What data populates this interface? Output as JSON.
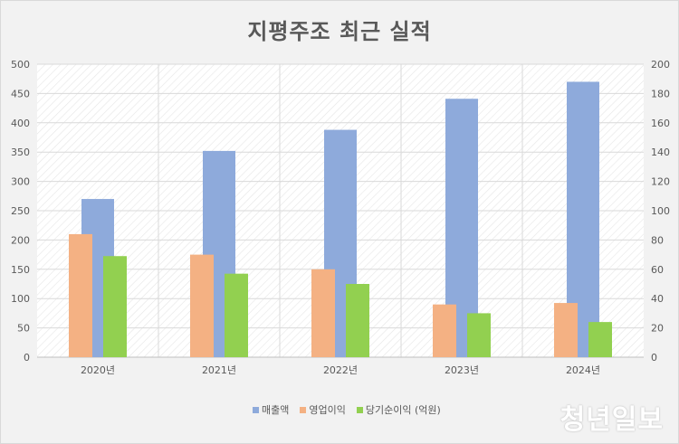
{
  "chart_data": {
    "type": "bar",
    "title": "지평주조 최근 실적",
    "categories": [
      "2020년",
      "2021년",
      "2022년",
      "2023년",
      "2024년"
    ],
    "series": [
      {
        "name": "매출액",
        "axis": "left",
        "color": "#8eaadb",
        "values": [
          270,
          352,
          388,
          441,
          470
        ]
      },
      {
        "name": "영업이익",
        "axis": "right",
        "color": "#f4b183",
        "values": [
          84,
          70,
          60,
          36,
          37
        ]
      },
      {
        "name": "당기순이익 (억원)",
        "axis": "right",
        "color": "#92d050",
        "values": [
          69,
          57,
          50,
          30,
          24
        ]
      }
    ],
    "y_left": {
      "min": 0,
      "max": 500,
      "ticks": [
        0,
        50,
        100,
        150,
        200,
        250,
        300,
        350,
        400,
        450,
        500
      ]
    },
    "y_right": {
      "min": 0,
      "max": 200,
      "ticks": [
        0,
        20,
        40,
        60,
        80,
        100,
        120,
        140,
        160,
        180,
        200
      ]
    },
    "grid": true,
    "legend_position": "bottom"
  },
  "watermark": "청년일보"
}
